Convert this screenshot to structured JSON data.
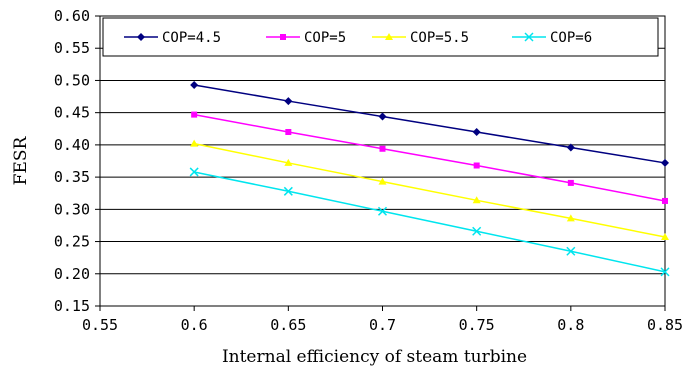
{
  "chart_data": {
    "type": "line",
    "xlabel": "Internal efficiency of steam turbine",
    "ylabel": "FESR",
    "xlim": [
      0.55,
      0.85
    ],
    "ylim": [
      0.15,
      0.6
    ],
    "x_ticks": [
      "0.55",
      "0.6",
      "0.65",
      "0.7",
      "0.75",
      "0.8",
      "0.85"
    ],
    "y_ticks": [
      "0.15",
      "0.20",
      "0.25",
      "0.30",
      "0.35",
      "0.40",
      "0.45",
      "0.50",
      "0.55",
      "0.60"
    ],
    "grid": "horizontal",
    "legend_position": "top",
    "x": [
      0.6,
      0.65,
      0.7,
      0.75,
      0.8,
      0.85
    ],
    "series": [
      {
        "name": "COP=4.5",
        "color": "#000080",
        "marker": "diamond",
        "values": [
          0.493,
          0.468,
          0.444,
          0.42,
          0.396,
          0.372
        ]
      },
      {
        "name": "COP=5",
        "color": "#ff00ff",
        "marker": "square",
        "values": [
          0.447,
          0.42,
          0.394,
          0.368,
          0.341,
          0.313
        ]
      },
      {
        "name": "COP=5.5",
        "color": "#ffff00",
        "marker": "triangle",
        "values": [
          0.402,
          0.372,
          0.343,
          0.314,
          0.286,
          0.257
        ]
      },
      {
        "name": "COP=6",
        "color": "#00e5ee",
        "marker": "x",
        "values": [
          0.358,
          0.328,
          0.297,
          0.266,
          0.235,
          0.203
        ]
      }
    ]
  }
}
